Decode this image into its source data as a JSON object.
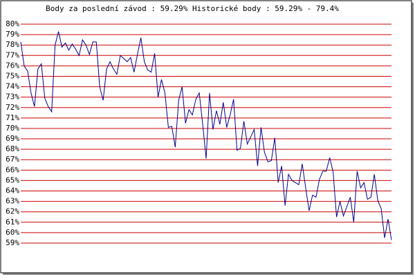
{
  "chart_data": {
    "type": "line",
    "title": "Body za poslední závod : 59.29%  Historické body : 59.29% - 79.4%",
    "series": [
      {
        "color": "#00008b",
        "values": [
          78.3,
          76,
          75.5,
          73.4,
          72.1,
          75.7,
          76.2,
          72.9,
          72.1,
          71.6,
          78,
          79.3,
          77.8,
          78.2,
          77.5,
          78.1,
          77.6,
          77,
          78.5,
          78,
          77.1,
          78.3,
          78.3,
          74,
          72.7,
          75.7,
          76.4,
          75.7,
          75.2,
          77,
          76.7,
          76.4,
          76.8,
          75.4,
          77.1,
          78.7,
          76.4,
          75.6,
          75.4,
          77.2,
          73,
          74.7,
          73.4,
          70.1,
          70.2,
          68.2,
          72.7,
          74,
          70.5,
          71.8,
          71.3,
          72.8,
          73.4,
          70.4,
          67.1,
          73.4,
          69.9,
          71.7,
          70.4,
          72.5,
          70.1,
          71.3,
          72.8,
          67.9,
          68.1,
          70.7,
          68.5,
          69.2,
          69.9,
          66.4,
          70.1,
          67.7,
          66.8,
          66.9,
          69.1,
          64.8,
          66.4,
          62.6,
          65.6,
          65,
          64.8,
          64.6,
          66.6,
          64.3,
          62.1,
          63.6,
          63.4,
          65.1,
          65.9,
          65.9,
          67.2,
          65.8,
          61.5,
          63,
          61.6,
          62.5,
          63.4,
          61,
          65.9,
          64.3,
          64.8,
          63.2,
          63.4,
          65.6,
          63.1,
          62.3,
          59.5,
          61.3,
          59.29
        ]
      }
    ],
    "ylim": [
      58.6,
      80.4
    ],
    "yticks": [
      {
        "value": 59,
        "label": "59%"
      },
      {
        "value": 60,
        "label": "60%"
      },
      {
        "value": 61,
        "label": "61%"
      },
      {
        "value": 62,
        "label": "62%"
      },
      {
        "value": 63,
        "label": "63%"
      },
      {
        "value": 64,
        "label": "64%"
      },
      {
        "value": 65,
        "label": "65%"
      },
      {
        "value": 66,
        "label": "66%"
      },
      {
        "value": 67,
        "label": "67%"
      },
      {
        "value": 68,
        "label": "68%"
      },
      {
        "value": 69,
        "label": "69%"
      },
      {
        "value": 70,
        "label": "70%"
      },
      {
        "value": 71,
        "label": "71%"
      },
      {
        "value": 72,
        "label": "72%"
      },
      {
        "value": 73,
        "label": "73%"
      },
      {
        "value": 74,
        "label": "74%"
      },
      {
        "value": 75,
        "label": "75%"
      },
      {
        "value": 76,
        "label": "76%"
      },
      {
        "value": 77,
        "label": "77%"
      },
      {
        "value": 78,
        "label": "78%"
      },
      {
        "value": 79,
        "label": "79%"
      },
      {
        "value": 80,
        "label": "80%"
      }
    ],
    "grid": true,
    "grid_color": "#cc0000"
  }
}
